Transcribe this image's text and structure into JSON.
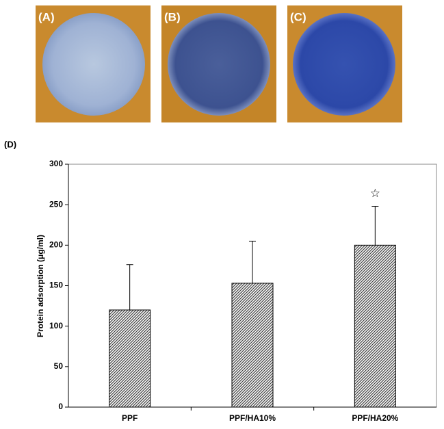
{
  "chart_data": {
    "type": "bar",
    "panel_labels": [
      "(A)",
      "(B)",
      "(C)",
      "(D)"
    ],
    "y_label": "Protein adsorption (μg/ml)",
    "categories": [
      "PPF",
      "PPF/HA10%",
      "PPF/HA20%"
    ],
    "values": [
      120,
      153,
      200
    ],
    "errors": [
      56,
      52,
      48
    ],
    "color": "#444444",
    "ylim": [
      0,
      300
    ],
    "yticks": [
      0,
      50,
      100,
      150,
      200,
      250,
      300
    ],
    "annotation": {
      "text": "☆",
      "category": "PPF/HA20%"
    }
  }
}
